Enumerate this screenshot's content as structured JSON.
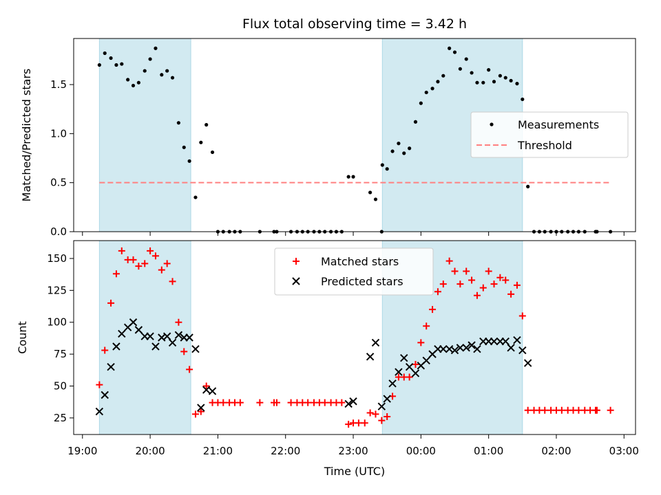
{
  "figure": {
    "title": "Flux total observing time = 3.42 h",
    "xlabel": "Time (UTC)",
    "x_ticks": [
      {
        "t": 19.0,
        "label": "19:00"
      },
      {
        "t": 20.0,
        "label": "20:00"
      },
      {
        "t": 21.0,
        "label": "21:00"
      },
      {
        "t": 22.0,
        "label": "22:00"
      },
      {
        "t": 23.0,
        "label": "23:00"
      },
      {
        "t": 24.0,
        "label": "00:00"
      },
      {
        "t": 25.0,
        "label": "01:00"
      },
      {
        "t": 26.0,
        "label": "02:00"
      },
      {
        "t": 27.0,
        "label": "03:00"
      }
    ],
    "xlim": [
      18.87,
      27.17
    ],
    "shaded_intervals": [
      [
        19.25,
        20.6
      ],
      [
        23.43,
        25.5
      ]
    ],
    "shade_color": "#add8e6"
  },
  "chart_data": [
    {
      "type": "scatter",
      "ylabel": "Matched/Predicted stars",
      "ylim": [
        0,
        1.97
      ],
      "y_ticks": [
        0.0,
        0.5,
        1.0,
        1.5
      ],
      "legend_placement": "center-right",
      "threshold": {
        "name": "Threshold",
        "value": 0.5,
        "x_range": [
          19.25,
          26.8
        ],
        "color": "#ff8080"
      },
      "series": [
        {
          "name": "Measurements",
          "color": "#000000",
          "points": [
            [
              19.25,
              1.7
            ],
            [
              19.33,
              1.82
            ],
            [
              19.42,
              1.77
            ],
            [
              19.5,
              1.7
            ],
            [
              19.58,
              1.71
            ],
            [
              19.67,
              1.55
            ],
            [
              19.75,
              1.49
            ],
            [
              19.83,
              1.52
            ],
            [
              19.92,
              1.64
            ],
            [
              20.0,
              1.76
            ],
            [
              20.08,
              1.87
            ],
            [
              20.17,
              1.6
            ],
            [
              20.25,
              1.64
            ],
            [
              20.33,
              1.57
            ],
            [
              20.42,
              1.11
            ],
            [
              20.5,
              0.86
            ],
            [
              20.58,
              0.72
            ],
            [
              20.67,
              0.35
            ],
            [
              20.75,
              0.91
            ],
            [
              20.83,
              1.09
            ],
            [
              20.92,
              0.81
            ],
            [
              21.0,
              0.0
            ],
            [
              21.08,
              0.0
            ],
            [
              21.17,
              0.0
            ],
            [
              21.25,
              0.0
            ],
            [
              21.33,
              0.0
            ],
            [
              21.62,
              0.0
            ],
            [
              21.83,
              0.0
            ],
            [
              21.87,
              0.0
            ],
            [
              22.08,
              0.0
            ],
            [
              22.17,
              0.0
            ],
            [
              22.25,
              0.0
            ],
            [
              22.33,
              0.0
            ],
            [
              22.42,
              0.0
            ],
            [
              22.5,
              0.0
            ],
            [
              22.58,
              0.0
            ],
            [
              22.67,
              0.0
            ],
            [
              22.75,
              0.0
            ],
            [
              22.83,
              0.0
            ],
            [
              22.93,
              0.56
            ],
            [
              23.0,
              0.56
            ],
            [
              23.25,
              0.4
            ],
            [
              23.33,
              0.33
            ],
            [
              23.42,
              0.0
            ],
            [
              23.43,
              0.68
            ],
            [
              23.5,
              0.64
            ],
            [
              23.58,
              0.82
            ],
            [
              23.67,
              0.9
            ],
            [
              23.75,
              0.8
            ],
            [
              23.83,
              0.85
            ],
            [
              23.92,
              1.12
            ],
            [
              24.0,
              1.31
            ],
            [
              24.08,
              1.42
            ],
            [
              24.17,
              1.46
            ],
            [
              24.25,
              1.53
            ],
            [
              24.33,
              1.59
            ],
            [
              24.42,
              1.87
            ],
            [
              24.5,
              1.83
            ],
            [
              24.58,
              1.66
            ],
            [
              24.67,
              1.76
            ],
            [
              24.75,
              1.62
            ],
            [
              24.83,
              1.52
            ],
            [
              24.92,
              1.52
            ],
            [
              25.0,
              1.65
            ],
            [
              25.08,
              1.53
            ],
            [
              25.17,
              1.59
            ],
            [
              25.25,
              1.57
            ],
            [
              25.33,
              1.54
            ],
            [
              25.42,
              1.51
            ],
            [
              25.5,
              1.35
            ],
            [
              25.58,
              0.46
            ],
            [
              25.67,
              0.0
            ],
            [
              25.75,
              0.0
            ],
            [
              25.83,
              0.0
            ],
            [
              25.92,
              0.0
            ],
            [
              26.0,
              0.0
            ],
            [
              26.08,
              0.0
            ],
            [
              26.17,
              0.0
            ],
            [
              26.25,
              0.0
            ],
            [
              26.33,
              0.0
            ],
            [
              26.42,
              0.0
            ],
            [
              26.58,
              0.0
            ],
            [
              26.6,
              0.0
            ],
            [
              26.8,
              0.0
            ]
          ]
        }
      ]
    },
    {
      "type": "scatter",
      "ylabel": "Count",
      "ylim": [
        12,
        164
      ],
      "y_ticks": [
        25,
        50,
        75,
        100,
        125,
        150
      ],
      "legend_placement": "top-center",
      "series": [
        {
          "name": "Matched stars",
          "marker": "plus",
          "color": "#ff0000",
          "points": [
            [
              19.25,
              51
            ],
            [
              19.33,
              78
            ],
            [
              19.42,
              115
            ],
            [
              19.5,
              138
            ],
            [
              19.58,
              156
            ],
            [
              19.67,
              149
            ],
            [
              19.75,
              149
            ],
            [
              19.83,
              144
            ],
            [
              19.92,
              146
            ],
            [
              20.0,
              156
            ],
            [
              20.08,
              152
            ],
            [
              20.17,
              141
            ],
            [
              20.25,
              146
            ],
            [
              20.33,
              132
            ],
            [
              20.42,
              100
            ],
            [
              20.5,
              77
            ],
            [
              20.58,
              63
            ],
            [
              20.67,
              28
            ],
            [
              20.75,
              30
            ],
            [
              20.83,
              50
            ],
            [
              20.92,
              37
            ],
            [
              21.0,
              37
            ],
            [
              21.08,
              37
            ],
            [
              21.17,
              37
            ],
            [
              21.25,
              37
            ],
            [
              21.33,
              37
            ],
            [
              21.62,
              37
            ],
            [
              21.83,
              37
            ],
            [
              21.87,
              37
            ],
            [
              22.08,
              37
            ],
            [
              22.17,
              37
            ],
            [
              22.25,
              37
            ],
            [
              22.33,
              37
            ],
            [
              22.42,
              37
            ],
            [
              22.5,
              37
            ],
            [
              22.58,
              37
            ],
            [
              22.67,
              37
            ],
            [
              22.75,
              37
            ],
            [
              22.83,
              37
            ],
            [
              22.93,
              20
            ],
            [
              23.0,
              21
            ],
            [
              23.08,
              21
            ],
            [
              23.17,
              21
            ],
            [
              23.25,
              29
            ],
            [
              23.33,
              28
            ],
            [
              23.42,
              23
            ],
            [
              23.5,
              26
            ],
            [
              23.58,
              42
            ],
            [
              23.67,
              57
            ],
            [
              23.75,
              57
            ],
            [
              23.83,
              57
            ],
            [
              23.92,
              67
            ],
            [
              24.0,
              84
            ],
            [
              24.08,
              97
            ],
            [
              24.17,
              110
            ],
            [
              24.25,
              124
            ],
            [
              24.33,
              130
            ],
            [
              24.42,
              148
            ],
            [
              24.5,
              140
            ],
            [
              24.58,
              130
            ],
            [
              24.67,
              140
            ],
            [
              24.75,
              133
            ],
            [
              24.83,
              121
            ],
            [
              24.92,
              127
            ],
            [
              25.0,
              140
            ],
            [
              25.08,
              130
            ],
            [
              25.17,
              135
            ],
            [
              25.25,
              133
            ],
            [
              25.33,
              122
            ],
            [
              25.42,
              129
            ],
            [
              25.5,
              105
            ],
            [
              25.58,
              31
            ],
            [
              25.67,
              31
            ],
            [
              25.75,
              31
            ],
            [
              25.83,
              31
            ],
            [
              25.92,
              31
            ],
            [
              26.0,
              31
            ],
            [
              26.08,
              31
            ],
            [
              26.17,
              31
            ],
            [
              26.25,
              31
            ],
            [
              26.33,
              31
            ],
            [
              26.42,
              31
            ],
            [
              26.5,
              31
            ],
            [
              26.58,
              31
            ],
            [
              26.6,
              31
            ],
            [
              26.8,
              31
            ]
          ]
        },
        {
          "name": "Predicted stars",
          "marker": "x",
          "color": "#000000",
          "points": [
            [
              19.25,
              30
            ],
            [
              19.33,
              43
            ],
            [
              19.42,
              65
            ],
            [
              19.5,
              81
            ],
            [
              19.58,
              91
            ],
            [
              19.67,
              96
            ],
            [
              19.75,
              100
            ],
            [
              19.83,
              94
            ],
            [
              19.92,
              89
            ],
            [
              20.0,
              89
            ],
            [
              20.08,
              81
            ],
            [
              20.17,
              88
            ],
            [
              20.25,
              89
            ],
            [
              20.33,
              84
            ],
            [
              20.42,
              90
            ],
            [
              20.5,
              88
            ],
            [
              20.58,
              88
            ],
            [
              20.67,
              79
            ],
            [
              20.75,
              33
            ],
            [
              20.83,
              47
            ],
            [
              20.92,
              46
            ],
            [
              22.93,
              36
            ],
            [
              23.0,
              38
            ],
            [
              23.25,
              73
            ],
            [
              23.33,
              84
            ],
            [
              23.42,
              34
            ],
            [
              23.5,
              40
            ],
            [
              23.58,
              52
            ],
            [
              23.67,
              61
            ],
            [
              23.75,
              72
            ],
            [
              23.83,
              65
            ],
            [
              23.92,
              60
            ],
            [
              24.0,
              66
            ],
            [
              24.08,
              70
            ],
            [
              24.17,
              75
            ],
            [
              24.25,
              79
            ],
            [
              24.33,
              79
            ],
            [
              24.42,
              79
            ],
            [
              24.5,
              78
            ],
            [
              24.58,
              80
            ],
            [
              24.67,
              80
            ],
            [
              24.75,
              82
            ],
            [
              24.83,
              79
            ],
            [
              24.92,
              85
            ],
            [
              25.0,
              85
            ],
            [
              25.08,
              85
            ],
            [
              25.17,
              85
            ],
            [
              25.25,
              85
            ],
            [
              25.33,
              80
            ],
            [
              25.42,
              86
            ],
            [
              25.5,
              78
            ],
            [
              25.58,
              68
            ]
          ]
        }
      ]
    }
  ]
}
